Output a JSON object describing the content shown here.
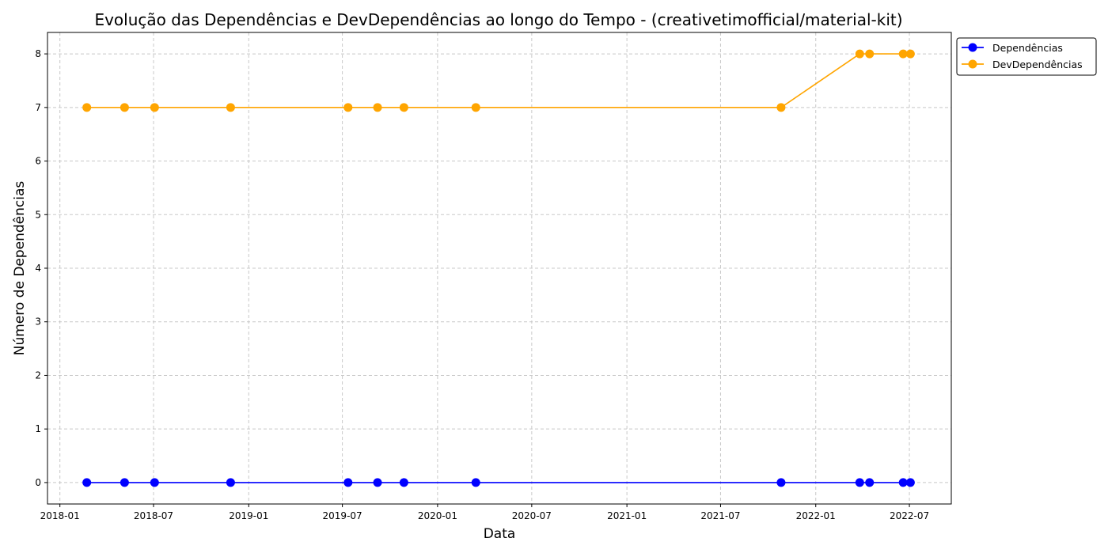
{
  "chart_data": {
    "type": "line",
    "title": "Evolução das Dependências e DevDependências ao longo do Tempo - (creativetimofficial/material-kit)",
    "xlabel": "Data",
    "ylabel": "Número de Dependências",
    "x_ticks": [
      "2018-01",
      "2018-07",
      "2019-01",
      "2019-07",
      "2020-01",
      "2020-07",
      "2021-01",
      "2021-07",
      "2022-01",
      "2022-07"
    ],
    "y_ticks": [
      0,
      1,
      2,
      3,
      4,
      5,
      6,
      7,
      8
    ],
    "xlim": [
      "2017-12-08",
      "2022-09-20"
    ],
    "ylim": [
      -0.4,
      8.4
    ],
    "grid": true,
    "legend_position": "outside upper-right",
    "x": [
      "2018-02-22",
      "2018-05-06",
      "2018-07-03",
      "2018-11-27",
      "2019-07-12",
      "2019-09-07",
      "2019-10-28",
      "2020-03-15",
      "2021-10-26",
      "2022-03-27",
      "2022-04-15",
      "2022-06-19",
      "2022-07-03"
    ],
    "series": [
      {
        "name": "Dependências",
        "color": "#0000ff",
        "values": [
          0,
          0,
          0,
          0,
          0,
          0,
          0,
          0,
          0,
          0,
          0,
          0,
          0
        ]
      },
      {
        "name": "DevDependências",
        "color": "#ffa500",
        "values": [
          7,
          7,
          7,
          7,
          7,
          7,
          7,
          7,
          7,
          8,
          8,
          8,
          8
        ]
      }
    ]
  }
}
